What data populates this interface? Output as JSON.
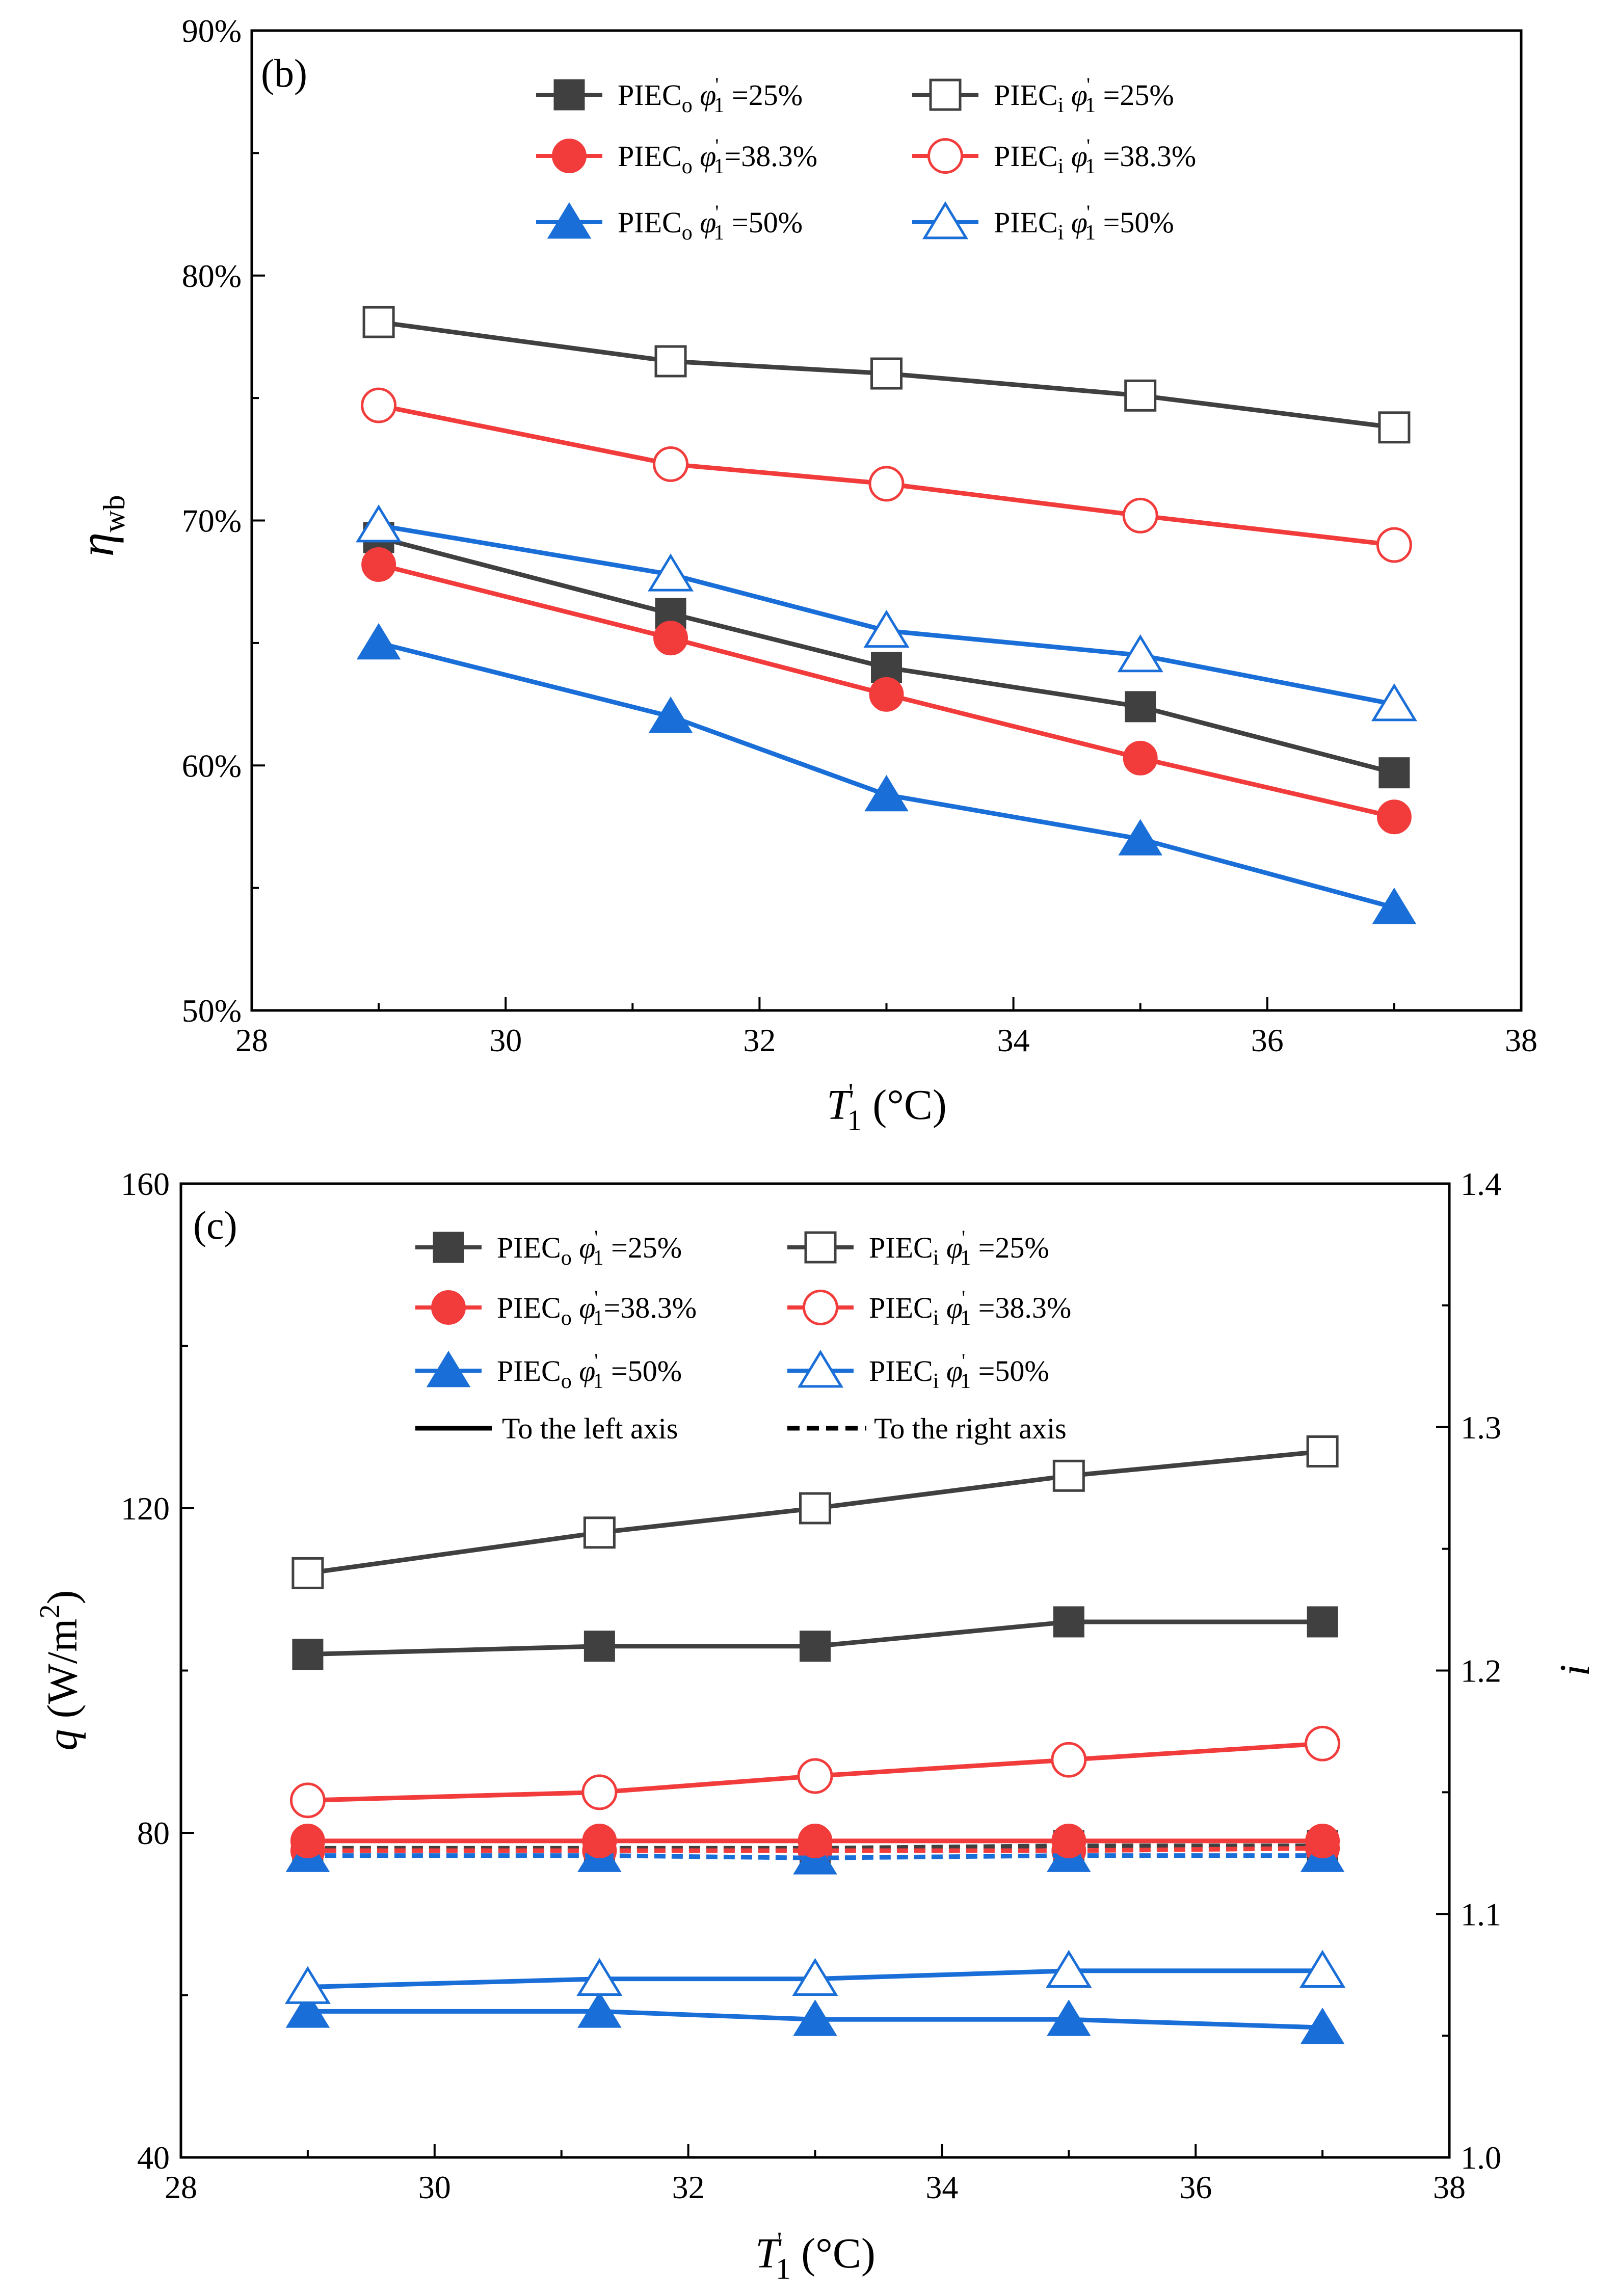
{
  "colors": {
    "piec_25": "#404040",
    "piec_38": "#f23c3c",
    "piec_50": "#1a6ed8",
    "axis": "#000000"
  },
  "chart_data": [
    {
      "type": "line",
      "panel_label": "(b)",
      "ylabel": "η",
      "ylabel_sub": "wb",
      "xlabel": "T",
      "xlabel_prime": "'",
      "xlabel_sub": "1",
      "xlabel_unit": "(°C)",
      "xlim": [
        28,
        38
      ],
      "ylim": [
        50,
        90
      ],
      "xticks": [
        "28",
        "30",
        "32",
        "34",
        "36",
        "38"
      ],
      "yticks": [
        "50%",
        "60%",
        "70%",
        "80%",
        "90%"
      ],
      "x": [
        29,
        31.3,
        33,
        35,
        37
      ],
      "series": [
        {
          "name": "PIECo φ1 =25%",
          "main": "PIEC",
          "sub": "o",
          "phi": "φ",
          "phi_prime": "'",
          "phi_sub": "1",
          "value_text": " =25%",
          "marker": "square",
          "fill": true,
          "color_key": "piec_25",
          "values": [
            69.3,
            66.2,
            64.0,
            62.4,
            59.7
          ]
        },
        {
          "name": "PIECi φ1 =25%",
          "main": "PIEC",
          "sub": "i",
          "phi": "φ",
          "phi_prime": "'",
          "phi_sub": "1",
          "value_text": " =25%",
          "marker": "square",
          "fill": false,
          "color_key": "piec_25",
          "values": [
            78.1,
            76.5,
            76.0,
            75.1,
            73.8
          ]
        },
        {
          "name": "PIECo φ1=38.3%",
          "main": "PIEC",
          "sub": "o",
          "phi": "φ",
          "phi_prime": "'",
          "phi_sub": "1",
          "value_text": "=38.3%",
          "marker": "circle",
          "fill": true,
          "color_key": "piec_38",
          "values": [
            68.2,
            65.2,
            62.9,
            60.3,
            57.9
          ]
        },
        {
          "name": "PIECi φ1 =38.3%",
          "main": "PIEC",
          "sub": "i",
          "phi": "φ",
          "phi_prime": "'",
          "phi_sub": "1",
          "value_text": " =38.3%",
          "marker": "circle",
          "fill": false,
          "color_key": "piec_38",
          "values": [
            74.7,
            72.3,
            71.5,
            70.2,
            69.0
          ]
        },
        {
          "name": "PIECo φ1 =50%",
          "main": "PIEC",
          "sub": "o",
          "phi": "φ",
          "phi_prime": "'",
          "phi_sub": "1",
          "value_text": " =50%",
          "marker": "triangle",
          "fill": true,
          "color_key": "piec_50",
          "values": [
            65.0,
            62.0,
            58.8,
            57.0,
            54.2
          ]
        },
        {
          "name": "PIECi φ1 =50%",
          "main": "PIEC",
          "sub": "i",
          "phi": "φ",
          "phi_prime": "'",
          "phi_sub": "1",
          "value_text": " =50%",
          "marker": "triangle",
          "fill": false,
          "color_key": "piec_50",
          "values": [
            69.8,
            67.8,
            65.5,
            64.5,
            62.5
          ]
        }
      ]
    },
    {
      "type": "line",
      "panel_label": "(c)",
      "ylabel": "q",
      "ylabel_unit": "(W/m",
      "ylabel_sup": "2",
      "ylabel_close": ")",
      "y2label": "i",
      "xlabel": "T",
      "xlabel_prime": "'",
      "xlabel_sub": "1",
      "xlabel_unit": "(°C)",
      "xlim": [
        28,
        38
      ],
      "ylim": [
        40,
        160
      ],
      "y2lim": [
        1.0,
        1.4
      ],
      "xticks": [
        "28",
        "30",
        "32",
        "34",
        "36",
        "38"
      ],
      "yticks": [
        "40",
        "80",
        "120",
        "160"
      ],
      "y2ticks": [
        "1.0",
        "1.1",
        "1.2",
        "1.3",
        "1.4"
      ],
      "x": [
        29,
        31.3,
        33,
        35,
        37
      ],
      "legend_extra": {
        "solid": "To the left axis",
        "dashed": "To the right axis"
      },
      "series": [
        {
          "name": "PIECo φ1 =25%",
          "main": "PIEC",
          "sub": "o",
          "phi": "φ",
          "phi_prime": "'",
          "phi_sub": "1",
          "value_text": " =25%",
          "marker": "square",
          "fill": true,
          "color_key": "piec_25",
          "axis": "left",
          "values": [
            102,
            103,
            103,
            106,
            106
          ]
        },
        {
          "name": "PIECi φ1 =25%",
          "main": "PIEC",
          "sub": "i",
          "phi": "φ",
          "phi_prime": "'",
          "phi_sub": "1",
          "value_text": " =25%",
          "marker": "square",
          "fill": false,
          "color_key": "piec_25",
          "axis": "left",
          "values": [
            112,
            117,
            120,
            124,
            127
          ]
        },
        {
          "name": "PIECo φ1=38.3%",
          "main": "PIEC",
          "sub": "o",
          "phi": "φ",
          "phi_prime": "'",
          "phi_sub": "1",
          "value_text": "=38.3%",
          "marker": "circle",
          "fill": true,
          "color_key": "piec_38",
          "axis": "left",
          "values": [
            79,
            79,
            79,
            79,
            79
          ]
        },
        {
          "name": "PIECi φ1 =38.3%",
          "main": "PIEC",
          "sub": "i",
          "phi": "φ",
          "phi_prime": "'",
          "phi_sub": "1",
          "value_text": " =38.3%",
          "marker": "circle",
          "fill": false,
          "color_key": "piec_38",
          "axis": "left",
          "values": [
            84,
            85,
            87,
            89,
            91
          ]
        },
        {
          "name": "PIECo φ1 =50%",
          "main": "PIEC",
          "sub": "o",
          "phi": "φ",
          "phi_prime": "'",
          "phi_sub": "1",
          "value_text": " =50%",
          "marker": "triangle",
          "fill": true,
          "color_key": "piec_50",
          "axis": "left",
          "values": [
            58,
            58,
            57,
            57,
            56
          ]
        },
        {
          "name": "PIECi φ1 =50%",
          "main": "PIEC",
          "sub": "i",
          "phi": "φ",
          "phi_prime": "'",
          "phi_sub": "1",
          "value_text": " =50%",
          "marker": "triangle",
          "fill": false,
          "color_key": "piec_50",
          "axis": "left",
          "values": [
            61,
            62,
            62,
            63,
            63
          ]
        },
        {
          "name": "PIECo φ1 =25% (i)",
          "marker": "square",
          "fill": true,
          "color_key": "piec_25",
          "axis": "right",
          "dashed": true,
          "values": [
            1.127,
            1.127,
            1.127,
            1.128,
            1.128
          ]
        },
        {
          "name": "PIECo φ1=38.3% (i)",
          "marker": "circle",
          "fill": true,
          "color_key": "piec_38",
          "axis": "right",
          "dashed": true,
          "values": [
            1.126,
            1.126,
            1.126,
            1.126,
            1.127
          ]
        },
        {
          "name": "PIECo φ1 =50% (i)",
          "marker": "triangle",
          "fill": true,
          "color_key": "piec_50",
          "axis": "right",
          "dashed": true,
          "values": [
            1.124,
            1.124,
            1.123,
            1.124,
            1.124
          ]
        }
      ]
    }
  ]
}
